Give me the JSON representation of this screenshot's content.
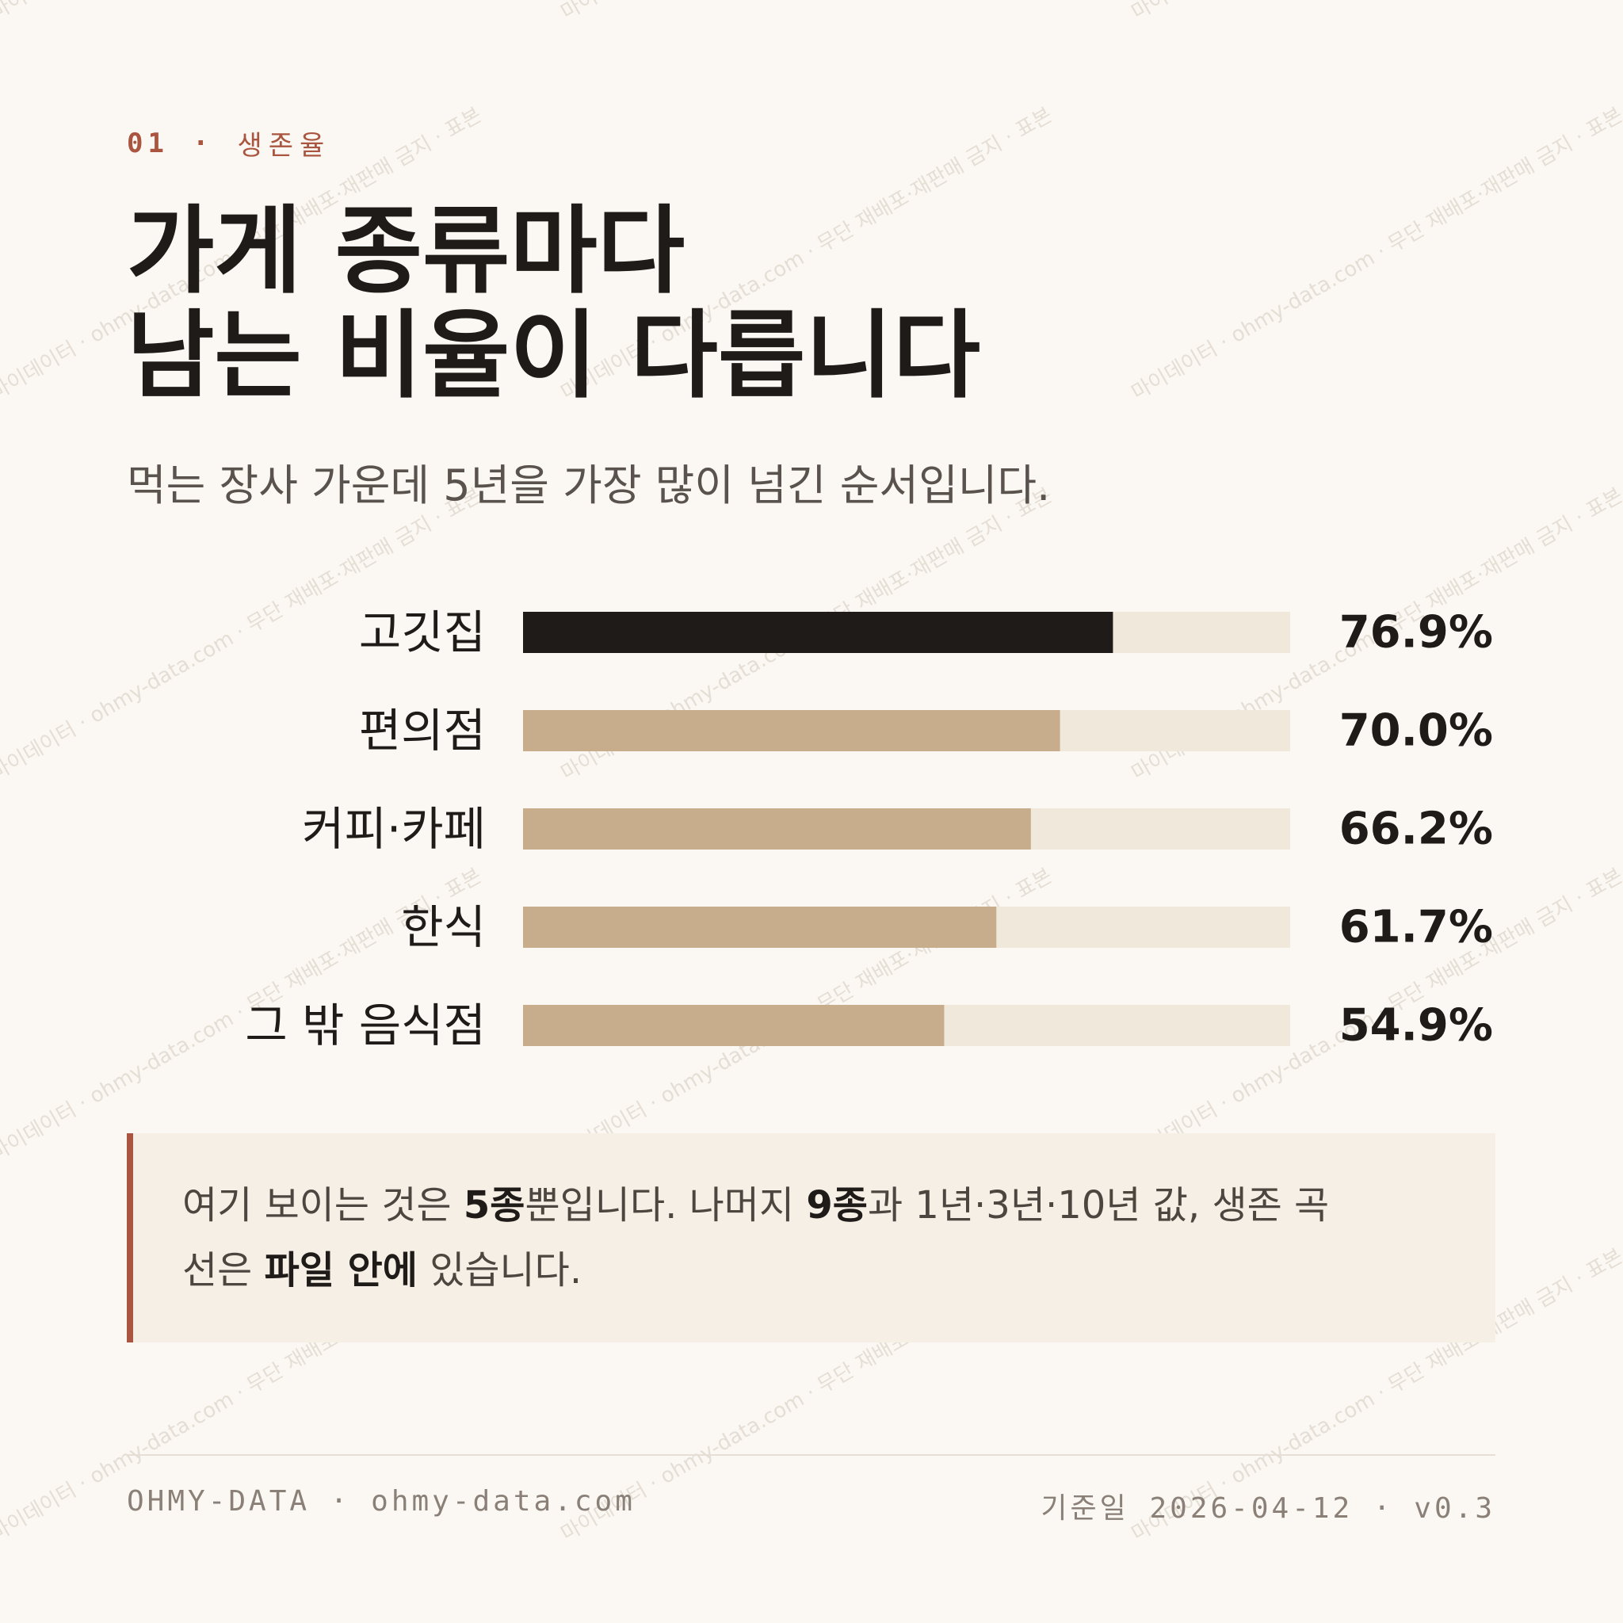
{
  "eyebrow": {
    "number": "01",
    "separator": "·",
    "name": "생존율"
  },
  "title": {
    "line1": "가게 종류마다",
    "line2": "남는 비율이 다릅니다"
  },
  "subtitle": "먹는 장사 가운데 5년을 가장 많이 넘긴 순서입니다.",
  "colors": {
    "highlight_bar": "#1f1b18",
    "bar": "#c8ad8c",
    "track": "#f1e8dc",
    "accent": "#a9553f"
  },
  "chart_data": {
    "type": "bar",
    "orientation": "horizontal",
    "categories": [
      "고깃집",
      "편의점",
      "커피·카페",
      "한식",
      "그 밖 음식점"
    ],
    "values": [
      76.9,
      70.0,
      66.2,
      61.7,
      54.9
    ],
    "value_labels": [
      "76.9%",
      "70.0%",
      "66.2%",
      "61.7%",
      "54.9%"
    ],
    "unit": "%",
    "xlim": [
      0,
      100
    ],
    "highlight_index": 0,
    "grid": false,
    "legend": "none"
  },
  "callout": {
    "t1": "여기 보이는 것은 ",
    "b1": "5종",
    "t2": "뿐입니다. 나머지 ",
    "b2": "9종",
    "t3": "과 1년·3년·10년 값, 생존 곡",
    "t4": "선은 ",
    "b3": "파일 안에",
    "t5": " 있습니다."
  },
  "footer": {
    "brand": "OHMY-DATA",
    "separator": "·",
    "site": "ohmy-data.com",
    "date_label": "기준일",
    "date": "2026-04-12",
    "version": "v0.3"
  },
  "watermark": "마이데이터 · ohmy-data.com · 무단 재배포·재판매 금지 · 표본"
}
